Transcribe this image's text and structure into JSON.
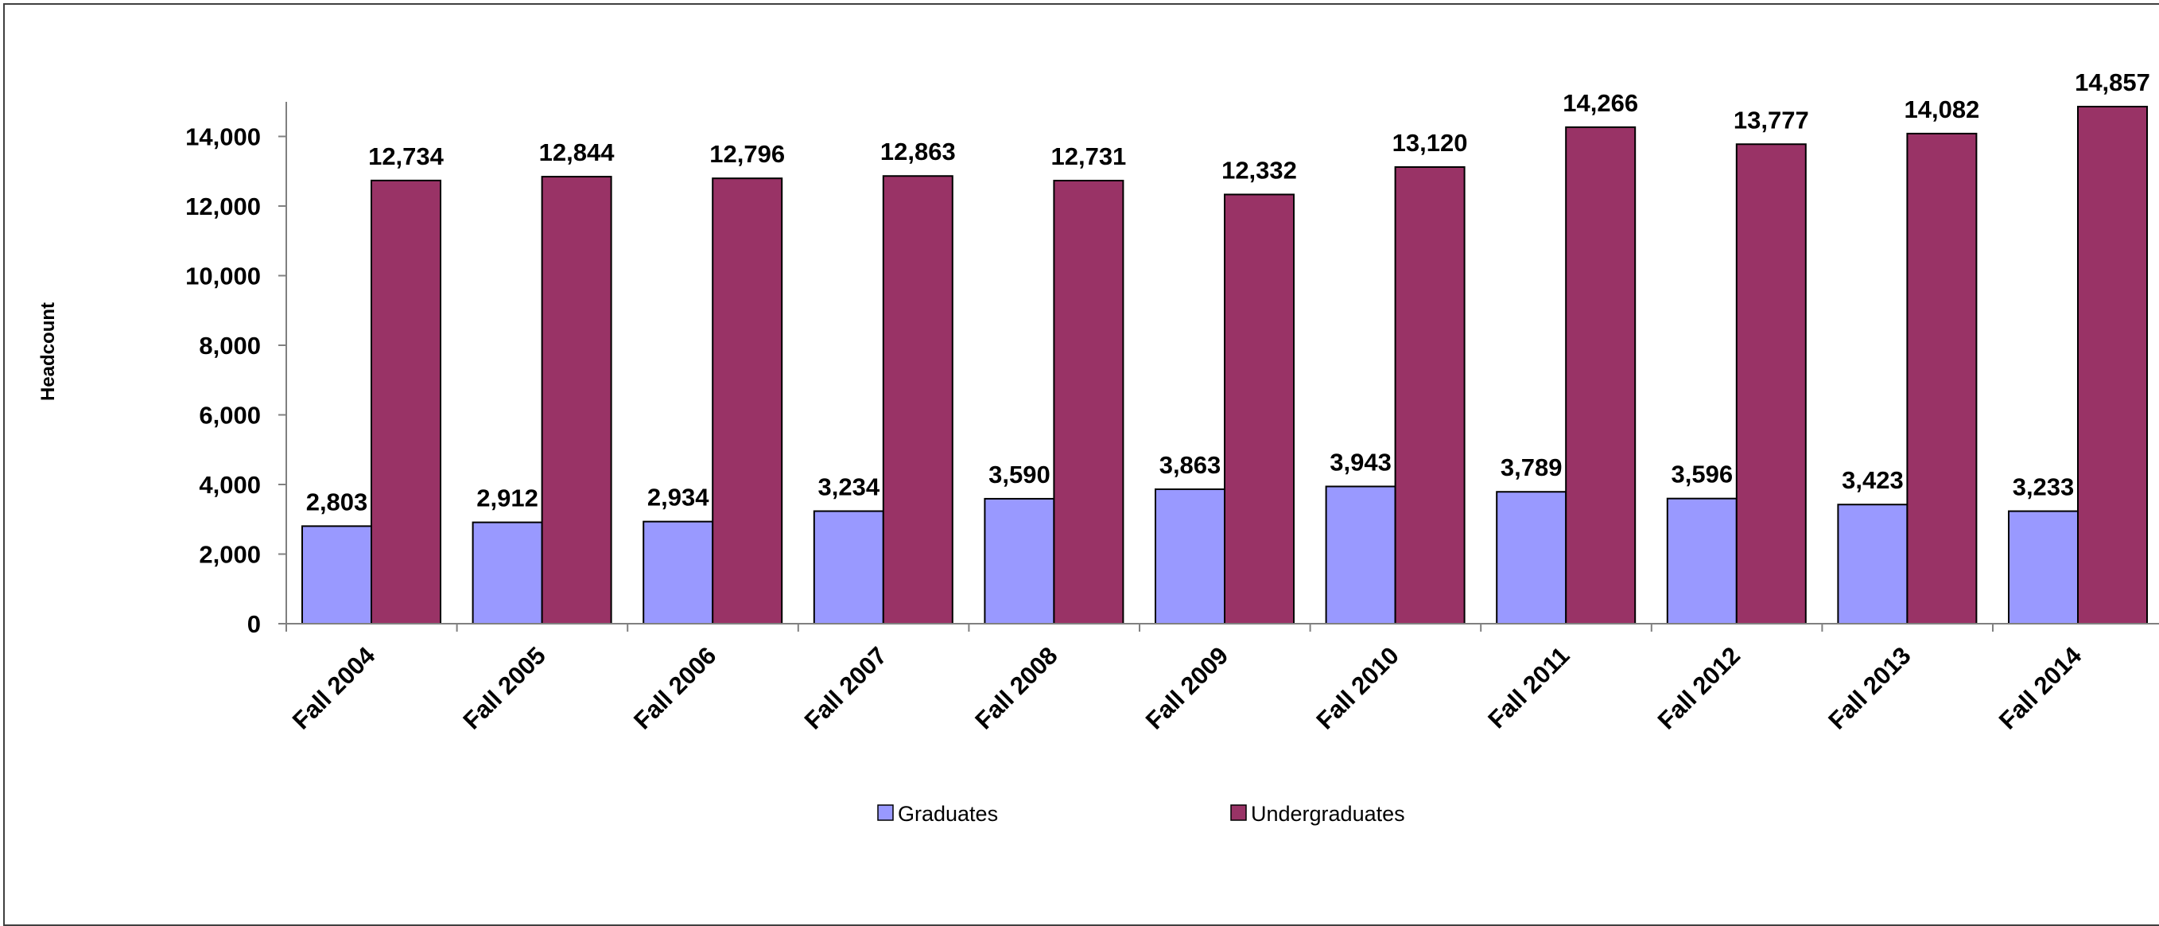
{
  "chart_data": {
    "type": "bar",
    "title": "",
    "xlabel": "",
    "ylabel": "Headcount",
    "ylim": [
      0,
      15000
    ],
    "yticks": [
      0,
      2000,
      4000,
      6000,
      8000,
      10000,
      12000,
      14000
    ],
    "ytick_labels": [
      "0",
      "2,000",
      "4,000",
      "6,000",
      "8,000",
      "10,000",
      "12,000",
      "14,000"
    ],
    "categories": [
      "Fall 2004",
      "Fall 2005",
      "Fall 2006",
      "Fall 2007",
      "Fall 2008",
      "Fall 2009",
      "Fall 2010",
      "Fall 2011",
      "Fall 2012",
      "Fall 2013",
      "Fall 2014"
    ],
    "series": [
      {
        "name": "Graduates",
        "color": "#9999ff",
        "values": [
          2803,
          2912,
          2934,
          3234,
          3590,
          3863,
          3943,
          3789,
          3596,
          3423,
          3233
        ],
        "labels": [
          "2,803",
          "2,912",
          "2,934",
          "3,234",
          "3,590",
          "3,863",
          "3,943",
          "3,789",
          "3,596",
          "3,423",
          "3,233"
        ]
      },
      {
        "name": "Undergraduates",
        "color": "#993366",
        "values": [
          12734,
          12844,
          12796,
          12863,
          12731,
          12332,
          13120,
          14266,
          13777,
          14082,
          14857
        ],
        "labels": [
          "12,734",
          "12,844",
          "12,796",
          "12,863",
          "12,731",
          "12,332",
          "13,120",
          "14,266",
          "13,777",
          "14,082",
          "14,857"
        ]
      }
    ],
    "grid": false,
    "legend_position": "bottom"
  }
}
